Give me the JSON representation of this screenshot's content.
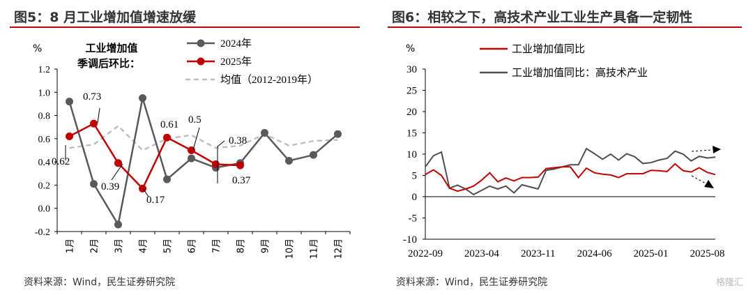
{
  "left": {
    "title": "图5：8 月工业增加值增速放缓",
    "source": "资料来源：Wind，民生证券研究院",
    "chart_data": {
      "type": "line",
      "unit": "%",
      "annotation": [
        "工业增加值",
        "季调后环比："
      ],
      "categories": [
        "1月",
        "2月",
        "3月",
        "4月",
        "5月",
        "6月",
        "7月",
        "8月",
        "9月",
        "10月",
        "11月",
        "12月"
      ],
      "ylim": [
        -0.2,
        1.2
      ],
      "yticks": [
        "-0.2",
        "0.0",
        "0.2",
        "0.4",
        "0.6",
        "0.8",
        "1.0",
        "1.2"
      ],
      "series": [
        {
          "name": "2024年",
          "color": "#595959",
          "values": [
            0.92,
            0.21,
            -0.14,
            0.95,
            0.25,
            0.43,
            0.35,
            0.39,
            0.65,
            0.41,
            0.46,
            0.64
          ]
        },
        {
          "name": "2025年",
          "color": "#c00000",
          "values": [
            0.62,
            0.73,
            0.39,
            0.17,
            0.61,
            0.5,
            0.38,
            0.37,
            null,
            null,
            null,
            null
          ]
        },
        {
          "name": "均值（2012-2019年）",
          "color": "#bfbfbf",
          "dashed": true,
          "values": [
            0.52,
            0.55,
            0.71,
            0.5,
            0.6,
            0.63,
            0.52,
            0.54,
            0.64,
            0.54,
            0.58,
            0.59
          ]
        }
      ],
      "data_labels": [
        "0.62",
        "0.73",
        "0.39",
        "0.17",
        "0.61",
        "0.5",
        "0.38",
        "0.37"
      ],
      "legend_position": "top-right"
    }
  },
  "right": {
    "title": "图6：相较之下，高技术产业工业生产具备一定韧性",
    "source": "资料来源：Wind，民生证券研究院",
    "watermark": "格隆汇",
    "chart_data": {
      "type": "line",
      "unit": "%",
      "ylim": [
        -10,
        30
      ],
      "yticks": [
        "-10",
        "-5",
        "0",
        "5",
        "10",
        "15",
        "20",
        "25",
        "30"
      ],
      "xticks": [
        "2022-09",
        "2023-04",
        "2023-11",
        "2024-06",
        "2025-01",
        "2025-08"
      ],
      "x_start": "2022-09",
      "x_end": "2025-08",
      "series": [
        {
          "name": "工业增加值同比",
          "color": "#c00000",
          "values": [
            5.2,
            6.3,
            5.0,
            2.0,
            1.3,
            1.8,
            2.5,
            3.9,
            5.6,
            3.5,
            4.4,
            3.7,
            4.5,
            4.5,
            4.6,
            6.6,
            6.8,
            7.0,
            7.0,
            4.5,
            6.7,
            5.6,
            5.3,
            5.1,
            4.5,
            5.4,
            5.4,
            5.4,
            6.2,
            6.1,
            5.9,
            7.7,
            6.1,
            5.8,
            6.8,
            5.7,
            5.2
          ]
        },
        {
          "name": "工业增加值同比：高技术产业",
          "color": "#4d4d4d",
          "values": [
            7.0,
            9.6,
            10.5,
            2.0,
            2.7,
            1.8,
            0.5,
            1.5,
            2.5,
            1.8,
            2.5,
            0.9,
            2.8,
            2.3,
            1.8,
            6.2,
            6.5,
            7.0,
            7.5,
            7.5,
            11.3,
            10.1,
            8.8,
            10.0,
            8.6,
            10.1,
            9.4,
            7.8,
            8.0,
            8.6,
            9.0,
            10.7,
            10.0,
            8.4,
            9.5,
            9.1,
            9.3
          ]
        }
      ],
      "legend_position": "top-left"
    }
  }
}
